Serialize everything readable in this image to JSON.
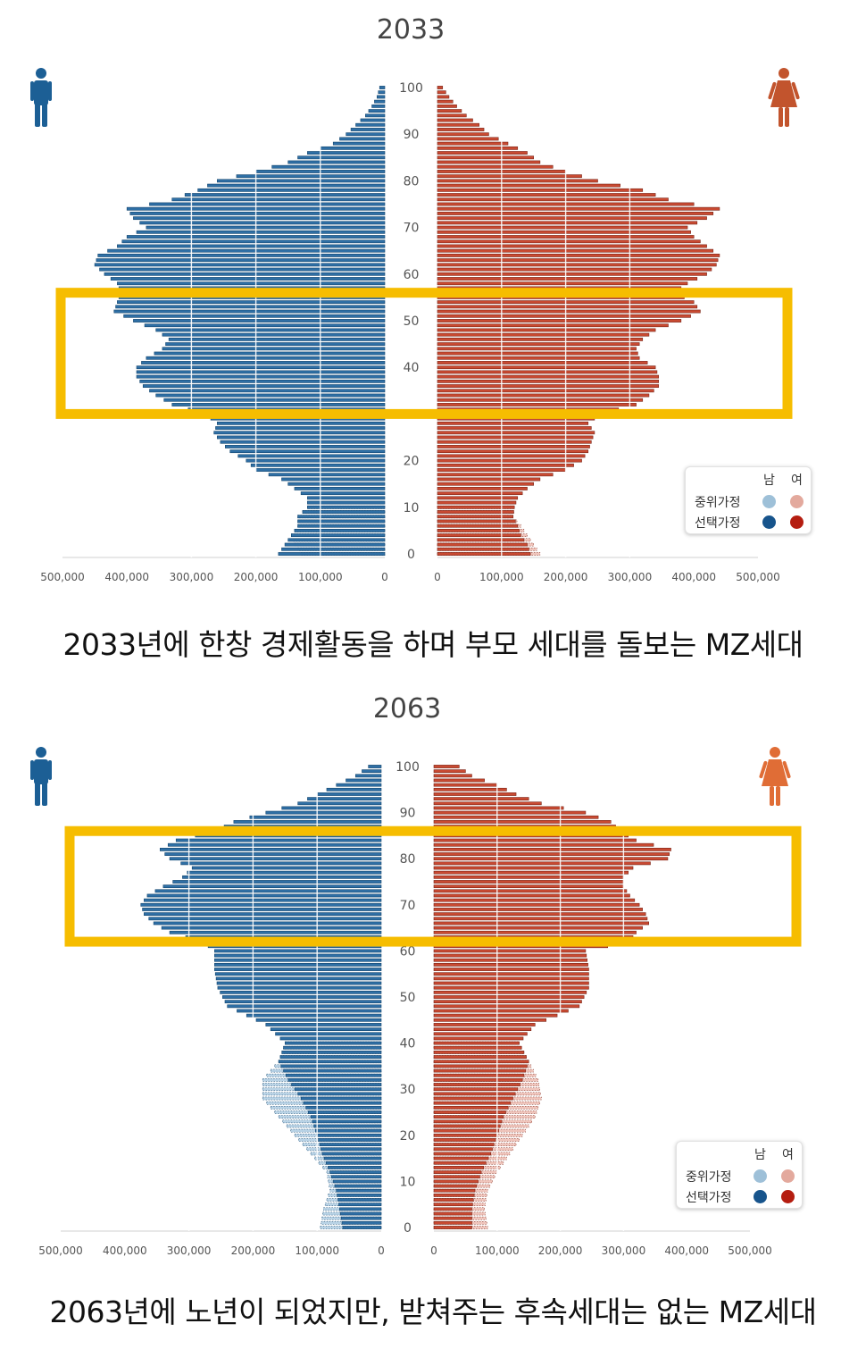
{
  "panels": [
    {
      "title": "2033",
      "caption": "2033년에 한창 경제활동을 하며 부모 세대를 돌보는 MZ세대"
    },
    {
      "title": "2063",
      "caption": "2063년에 노년이 되었지만, 받쳐주는 후속세대는 없는 MZ세대"
    }
  ],
  "legend": {
    "male_header": "남",
    "female_header": "여",
    "median_label": "중위가정",
    "selected_label": "선택가정"
  },
  "colors": {
    "male": "#2f6fa5",
    "male_dark": "#14466e",
    "male_light": "#b9d3e6",
    "female": "#c94a32",
    "female_dark": "#7a2517",
    "female_light": "#f0c5bc",
    "legend_male_median": "#9ec0d8",
    "legend_male_selected": "#17548c",
    "legend_female_median": "#e3a99d",
    "legend_female_selected": "#b51d10",
    "highlight": "#f6bd00",
    "male_icon": "#1c5f95",
    "female_icon_2033": "#c2542d",
    "female_icon_2063": "#e06d36"
  },
  "icons": {
    "male": "male-person-icon",
    "female": "female-person-icon"
  },
  "chart_data": [
    {
      "type": "bar",
      "subtype": "population-pyramid",
      "title": "2033",
      "xlabel": "",
      "ylabel": "",
      "age_ticks": [
        "0",
        "10",
        "20",
        "30",
        "40",
        "50",
        "60",
        "70",
        "80",
        "90",
        "100"
      ],
      "age_tick_values": [
        0,
        10,
        20,
        30,
        40,
        50,
        60,
        70,
        80,
        90,
        100
      ],
      "x_ticks_male": [
        "500,000",
        "400,000",
        "300,000",
        "200,000",
        "100,000",
        "0"
      ],
      "x_ticks_female": [
        "0",
        "100,000",
        "200,000",
        "300,000",
        "400,000",
        "500,000"
      ],
      "xlim": [
        0,
        500000
      ],
      "age_range": [
        0,
        100
      ],
      "highlight_age_range": [
        30,
        56
      ],
      "male_knots": [
        [
          0,
          165000
        ],
        [
          2,
          155000
        ],
        [
          4,
          145000
        ],
        [
          6,
          135000
        ],
        [
          8,
          135000
        ],
        [
          10,
          120000
        ],
        [
          12,
          120000
        ],
        [
          14,
          140000
        ],
        [
          16,
          160000
        ],
        [
          18,
          200000
        ],
        [
          20,
          215000
        ],
        [
          22,
          240000
        ],
        [
          24,
          255000
        ],
        [
          26,
          265000
        ],
        [
          28,
          260000
        ],
        [
          30,
          280000
        ],
        [
          32,
          330000
        ],
        [
          34,
          355000
        ],
        [
          36,
          375000
        ],
        [
          38,
          385000
        ],
        [
          40,
          385000
        ],
        [
          42,
          370000
        ],
        [
          44,
          345000
        ],
        [
          46,
          335000
        ],
        [
          48,
          355000
        ],
        [
          50,
          390000
        ],
        [
          52,
          420000
        ],
        [
          54,
          415000
        ],
        [
          56,
          410000
        ],
        [
          58,
          415000
        ],
        [
          60,
          435000
        ],
        [
          62,
          450000
        ],
        [
          64,
          445000
        ],
        [
          66,
          415000
        ],
        [
          68,
          400000
        ],
        [
          70,
          370000
        ],
        [
          72,
          390000
        ],
        [
          74,
          400000
        ],
        [
          76,
          330000
        ],
        [
          78,
          290000
        ],
        [
          80,
          260000
        ],
        [
          82,
          200000
        ],
        [
          84,
          150000
        ],
        [
          86,
          120000
        ],
        [
          88,
          80000
        ],
        [
          90,
          60000
        ],
        [
          92,
          45000
        ],
        [
          94,
          30000
        ],
        [
          96,
          20000
        ],
        [
          98,
          12000
        ],
        [
          100,
          8000
        ]
      ],
      "male_median_knots": [
        [
          0,
          130000
        ],
        [
          2,
          140000
        ],
        [
          4,
          145000
        ],
        [
          6,
          135000
        ],
        [
          8,
          135000
        ],
        [
          10,
          120000
        ]
      ],
      "female_knots": [
        [
          0,
          145000
        ],
        [
          2,
          140000
        ],
        [
          4,
          130000
        ],
        [
          6,
          125000
        ],
        [
          8,
          118000
        ],
        [
          10,
          120000
        ],
        [
          12,
          125000
        ],
        [
          14,
          140000
        ],
        [
          16,
          160000
        ],
        [
          18,
          200000
        ],
        [
          20,
          225000
        ],
        [
          22,
          235000
        ],
        [
          24,
          240000
        ],
        [
          26,
          245000
        ],
        [
          28,
          235000
        ],
        [
          30,
          255000
        ],
        [
          32,
          310000
        ],
        [
          34,
          330000
        ],
        [
          36,
          345000
        ],
        [
          38,
          345000
        ],
        [
          40,
          340000
        ],
        [
          42,
          315000
        ],
        [
          44,
          310000
        ],
        [
          46,
          320000
        ],
        [
          48,
          340000
        ],
        [
          50,
          380000
        ],
        [
          52,
          410000
        ],
        [
          54,
          400000
        ],
        [
          56,
          370000
        ],
        [
          58,
          390000
        ],
        [
          60,
          420000
        ],
        [
          62,
          435000
        ],
        [
          64,
          440000
        ],
        [
          66,
          420000
        ],
        [
          68,
          400000
        ],
        [
          70,
          390000
        ],
        [
          72,
          420000
        ],
        [
          74,
          440000
        ],
        [
          76,
          360000
        ],
        [
          78,
          320000
        ],
        [
          80,
          250000
        ],
        [
          82,
          200000
        ],
        [
          84,
          160000
        ],
        [
          86,
          140000
        ],
        [
          88,
          110000
        ],
        [
          90,
          80000
        ],
        [
          92,
          65000
        ],
        [
          94,
          45000
        ],
        [
          96,
          30000
        ],
        [
          98,
          18000
        ],
        [
          100,
          8000
        ]
      ],
      "female_median_knots": [
        [
          0,
          160000
        ],
        [
          2,
          150000
        ],
        [
          4,
          140000
        ],
        [
          6,
          130000
        ],
        [
          8,
          118000
        ],
        [
          10,
          120000
        ]
      ]
    },
    {
      "type": "bar",
      "subtype": "population-pyramid",
      "title": "2063",
      "xlabel": "",
      "ylabel": "",
      "age_ticks": [
        "0",
        "10",
        "20",
        "30",
        "40",
        "50",
        "60",
        "70",
        "80",
        "90",
        "100"
      ],
      "age_tick_values": [
        0,
        10,
        20,
        30,
        40,
        50,
        60,
        70,
        80,
        90,
        100
      ],
      "x_ticks_male": [
        "500,000",
        "400,000",
        "300,000",
        "200,000",
        "100,000",
        "0"
      ],
      "x_ticks_female": [
        "0",
        "100,000",
        "200,000",
        "300,000",
        "400,000",
        "500,000"
      ],
      "xlim": [
        0,
        500000
      ],
      "age_range": [
        0,
        100
      ],
      "highlight_age_range": [
        62,
        86
      ],
      "male_knots": [
        [
          0,
          60000
        ],
        [
          4,
          65000
        ],
        [
          8,
          70000
        ],
        [
          12,
          80000
        ],
        [
          16,
          92000
        ],
        [
          20,
          100000
        ],
        [
          24,
          110000
        ],
        [
          28,
          125000
        ],
        [
          32,
          145000
        ],
        [
          36,
          160000
        ],
        [
          40,
          150000
        ],
        [
          44,
          180000
        ],
        [
          48,
          240000
        ],
        [
          52,
          255000
        ],
        [
          56,
          260000
        ],
        [
          60,
          260000
        ],
        [
          62,
          280000
        ],
        [
          64,
          330000
        ],
        [
          66,
          355000
        ],
        [
          68,
          370000
        ],
        [
          70,
          375000
        ],
        [
          72,
          365000
        ],
        [
          74,
          340000
        ],
        [
          76,
          310000
        ],
        [
          78,
          295000
        ],
        [
          80,
          330000
        ],
        [
          82,
          345000
        ],
        [
          84,
          320000
        ],
        [
          86,
          260000
        ],
        [
          88,
          230000
        ],
        [
          90,
          180000
        ],
        [
          92,
          130000
        ],
        [
          94,
          100000
        ],
        [
          96,
          70000
        ],
        [
          98,
          40000
        ],
        [
          100,
          20000
        ]
      ],
      "male_median_knots": [
        [
          0,
          95000
        ],
        [
          4,
          90000
        ],
        [
          8,
          80000
        ],
        [
          12,
          85000
        ],
        [
          16,
          110000
        ],
        [
          20,
          135000
        ],
        [
          24,
          160000
        ],
        [
          28,
          185000
        ],
        [
          32,
          185000
        ],
        [
          36,
          160000
        ],
        [
          40,
          150000
        ]
      ],
      "female_knots": [
        [
          0,
          60000
        ],
        [
          4,
          60000
        ],
        [
          8,
          65000
        ],
        [
          12,
          75000
        ],
        [
          16,
          90000
        ],
        [
          20,
          100000
        ],
        [
          24,
          110000
        ],
        [
          28,
          125000
        ],
        [
          32,
          140000
        ],
        [
          36,
          150000
        ],
        [
          40,
          135000
        ],
        [
          44,
          160000
        ],
        [
          48,
          230000
        ],
        [
          52,
          245000
        ],
        [
          56,
          245000
        ],
        [
          60,
          240000
        ],
        [
          62,
          310000
        ],
        [
          64,
          320000
        ],
        [
          66,
          340000
        ],
        [
          68,
          335000
        ],
        [
          70,
          325000
        ],
        [
          72,
          310000
        ],
        [
          74,
          300000
        ],
        [
          76,
          300000
        ],
        [
          78,
          315000
        ],
        [
          80,
          370000
        ],
        [
          82,
          375000
        ],
        [
          84,
          320000
        ],
        [
          86,
          295000
        ],
        [
          88,
          280000
        ],
        [
          90,
          240000
        ],
        [
          92,
          170000
        ],
        [
          94,
          130000
        ],
        [
          96,
          100000
        ],
        [
          98,
          60000
        ],
        [
          100,
          40000
        ]
      ],
      "female_median_knots": [
        [
          0,
          85000
        ],
        [
          4,
          80000
        ],
        [
          8,
          85000
        ],
        [
          12,
          100000
        ],
        [
          16,
          120000
        ],
        [
          20,
          140000
        ],
        [
          24,
          160000
        ],
        [
          28,
          170000
        ],
        [
          32,
          165000
        ],
        [
          36,
          150000
        ],
        [
          40,
          135000
        ]
      ]
    }
  ]
}
